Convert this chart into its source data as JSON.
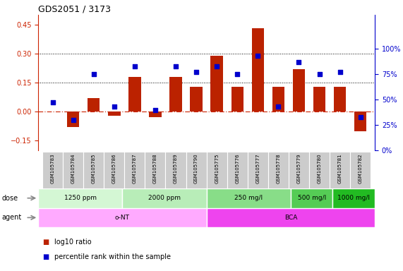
{
  "title": "GDS2051 / 3173",
  "samples": [
    "GSM105783",
    "GSM105784",
    "GSM105785",
    "GSM105786",
    "GSM105787",
    "GSM105788",
    "GSM105789",
    "GSM105790",
    "GSM105775",
    "GSM105776",
    "GSM105777",
    "GSM105778",
    "GSM105779",
    "GSM105780",
    "GSM105781",
    "GSM105782"
  ],
  "log10_ratio": [
    0.0,
    -0.08,
    0.07,
    -0.02,
    0.18,
    -0.03,
    0.18,
    0.13,
    0.29,
    0.13,
    0.43,
    0.13,
    0.22,
    0.13,
    0.13,
    -0.1
  ],
  "percentile": [
    47,
    30,
    75,
    43,
    83,
    40,
    83,
    77,
    83,
    75,
    93,
    43,
    87,
    75,
    77,
    33
  ],
  "ylim_left": [
    -0.2,
    0.5
  ],
  "ylim_right": [
    0,
    133.33
  ],
  "yticks_left": [
    -0.15,
    0.0,
    0.15,
    0.3,
    0.45
  ],
  "yticks_right": [
    0,
    25,
    50,
    75,
    100
  ],
  "hlines": [
    0.15,
    0.3
  ],
  "dose_groups": [
    {
      "label": "1250 ppm",
      "start": 0,
      "end": 4,
      "color": "#d4f7d4"
    },
    {
      "label": "2000 ppm",
      "start": 4,
      "end": 8,
      "color": "#b8edb8"
    },
    {
      "label": "250 mg/l",
      "start": 8,
      "end": 12,
      "color": "#88dd88"
    },
    {
      "label": "500 mg/l",
      "start": 12,
      "end": 14,
      "color": "#55cc55"
    },
    {
      "label": "1000 mg/l",
      "start": 14,
      "end": 16,
      "color": "#22bb22"
    }
  ],
  "agent_groups": [
    {
      "label": "o-NT",
      "start": 0,
      "end": 8,
      "color": "#ffaaff"
    },
    {
      "label": "BCA",
      "start": 8,
      "end": 16,
      "color": "#ee44ee"
    }
  ],
  "bar_color": "#bb2200",
  "dot_color": "#0000cc",
  "zero_line_color": "#cc2200",
  "background_color": "#ffffff",
  "label_color_left": "#cc2200",
  "label_color_right": "#0000cc",
  "grid_color": "#000000",
  "sample_bg_color": "#cccccc",
  "sample_edge_color": "#ffffff"
}
